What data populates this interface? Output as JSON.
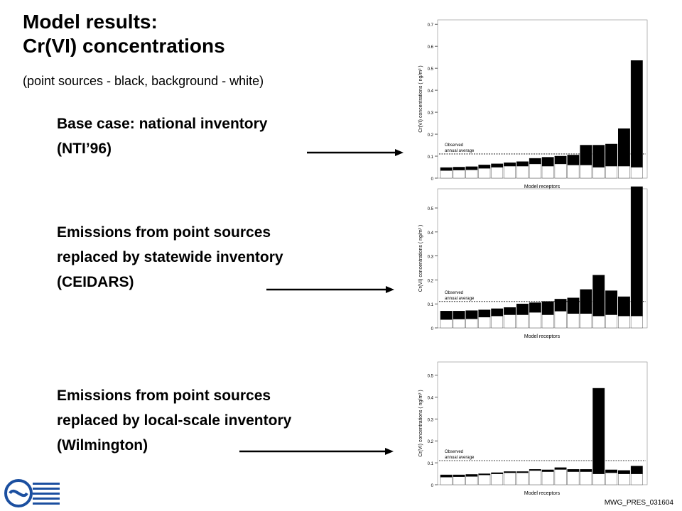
{
  "slide": {
    "title_line1": "Model results:",
    "title_line2": "Cr(VI) concentrations",
    "subtitle": "(point sources - black,  background - white)",
    "panels": [
      {
        "line1": "Base case: national inventory",
        "line2": "(NTI’96)",
        "line3": ""
      },
      {
        "line1": "Emissions from point sources",
        "line2": "replaced by statewide inventory",
        "line3": "(CEIDARS)"
      },
      {
        "line1": "Emissions from point sources",
        "line2": "replaced by local-scale inventory",
        "line3": "(Wilmington)"
      }
    ],
    "footer": "MWG_PRES_031604"
  },
  "chart_data": [
    {
      "type": "bar",
      "stacked": true,
      "ylabel": "Cr(VI) concentrations ( ng/m³ )",
      "xlabel": "Model receptors",
      "ylim": [
        0,
        0.72
      ],
      "yticks": [
        0,
        0.1,
        0.2,
        0.3,
        0.4,
        0.5,
        0.6,
        0.7
      ],
      "observed_label_1": "Observed",
      "observed_label_2": "annual average",
      "observed": 0.11,
      "background": [
        0.035,
        0.037,
        0.038,
        0.045,
        0.05,
        0.055,
        0.055,
        0.065,
        0.055,
        0.065,
        0.06,
        0.06,
        0.05,
        0.055,
        0.055,
        0.05
      ],
      "total": [
        0.048,
        0.05,
        0.052,
        0.06,
        0.065,
        0.07,
        0.075,
        0.09,
        0.095,
        0.1,
        0.105,
        0.15,
        0.15,
        0.155,
        0.225,
        0.535
      ]
    },
    {
      "type": "bar",
      "stacked": true,
      "ylabel": "Cr(VI) concentrations ( ng/m³ )",
      "xlabel": "Model receptors",
      "ylim": [
        0,
        0.58
      ],
      "yticks": [
        0,
        0.1,
        0.2,
        0.3,
        0.4,
        0.5
      ],
      "observed_label_1": "Observed",
      "observed_label_2": "annual average",
      "observed": 0.11,
      "background": [
        0.035,
        0.037,
        0.038,
        0.045,
        0.05,
        0.055,
        0.055,
        0.065,
        0.055,
        0.07,
        0.06,
        0.06,
        0.05,
        0.055,
        0.05,
        0.05
      ],
      "total": [
        0.07,
        0.07,
        0.072,
        0.075,
        0.08,
        0.085,
        0.1,
        0.105,
        0.11,
        0.12,
        0.125,
        0.16,
        0.22,
        0.155,
        0.13,
        0.68
      ]
    },
    {
      "type": "bar",
      "stacked": true,
      "ylabel": "Cr(VI) concentrations ( ng/m³ )",
      "xlabel": "Model receptors",
      "ylim": [
        0,
        0.56
      ],
      "yticks": [
        0,
        0.1,
        0.2,
        0.3,
        0.4,
        0.5
      ],
      "observed_label_1": "Observed",
      "observed_label_2": "annual average",
      "observed": 0.11,
      "background": [
        0.035,
        0.037,
        0.038,
        0.045,
        0.05,
        0.055,
        0.055,
        0.065,
        0.06,
        0.07,
        0.06,
        0.06,
        0.05,
        0.055,
        0.05,
        0.05
      ],
      "total": [
        0.045,
        0.045,
        0.047,
        0.05,
        0.055,
        0.06,
        0.06,
        0.07,
        0.068,
        0.078,
        0.07,
        0.07,
        0.44,
        0.068,
        0.065,
        0.085
      ]
    }
  ]
}
